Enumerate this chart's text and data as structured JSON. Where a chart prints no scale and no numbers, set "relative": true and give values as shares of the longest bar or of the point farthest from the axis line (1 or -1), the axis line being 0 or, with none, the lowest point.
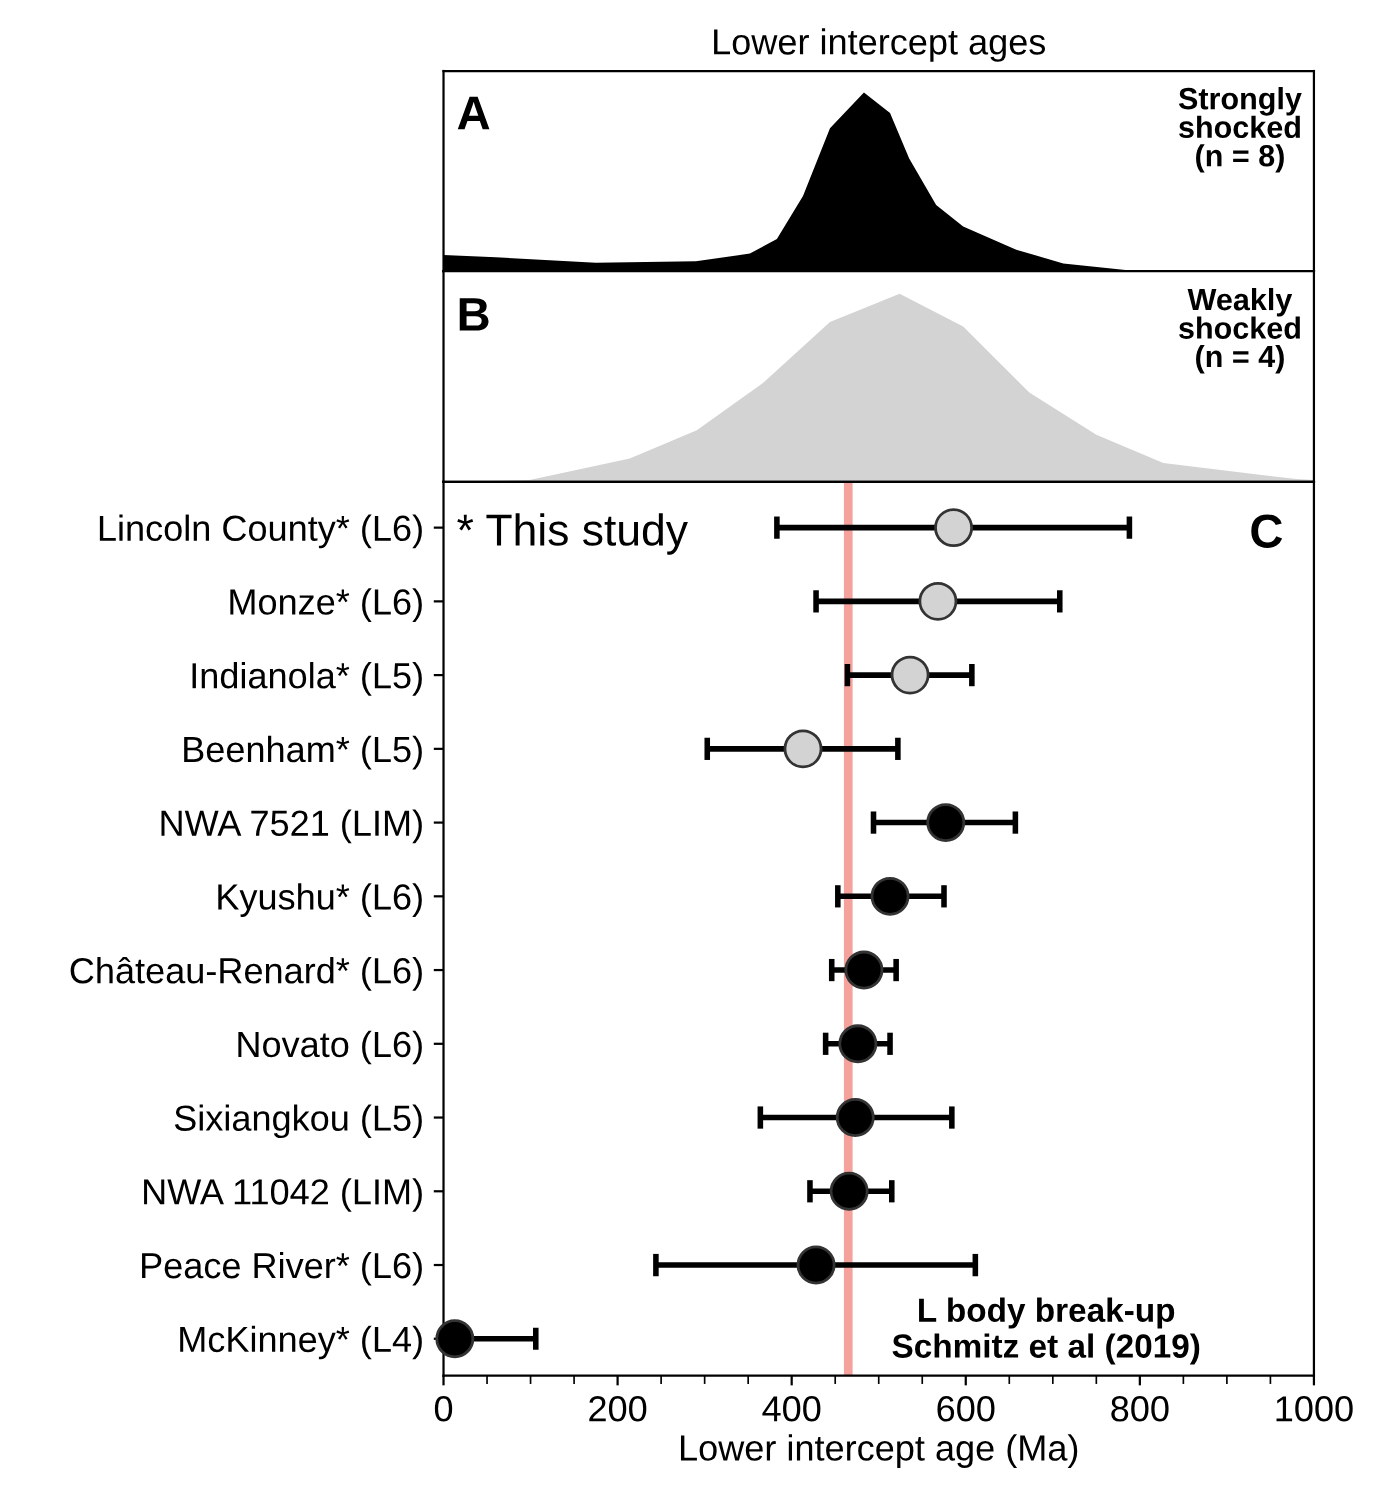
{
  "chart_data": [
    {
      "type": "area",
      "title": "Lower intercept ages",
      "relative": true,
      "xlim": [
        0,
        1000
      ],
      "tick_labels": false,
      "annotations": [
        "A",
        "Strongly\nshocked\n(n = 8)"
      ],
      "series": [
        {
          "color": "#000000",
          "x": [
            0,
            60,
            175,
            290,
            352,
            383,
            413,
            444,
            483,
            513,
            535,
            566,
            597,
            658,
            712,
            789,
            1000
          ],
          "values": [
            0.09,
            0.077,
            0.047,
            0.055,
            0.098,
            0.18,
            0.42,
            0.8,
            1.0,
            0.885,
            0.63,
            0.37,
            0.25,
            0.12,
            0.043,
            0.004,
            0
          ]
        }
      ]
    },
    {
      "type": "area",
      "relative": true,
      "xlim": [
        0,
        1000
      ],
      "tick_labels": false,
      "annotations": [
        "B",
        "Weakly\nshocked\n(n = 4)"
      ],
      "series": [
        {
          "color": "#d3d3d3",
          "x": [
            0,
            99,
            214,
            291,
            367,
            444,
            524,
            597,
            673,
            750,
            827,
            980,
            1000
          ],
          "values": [
            0,
            0.01,
            0.125,
            0.275,
            0.525,
            0.85,
            1.0,
            0.825,
            0.475,
            0.25,
            0.1,
            0.015,
            0.01
          ]
        }
      ]
    },
    {
      "type": "scatter",
      "orientation": "horizontal",
      "marker": "circle",
      "xlabel": "Lower intercept age (Ma)",
      "xlim": [
        0,
        1000
      ],
      "xticks": [
        0,
        200,
        400,
        600,
        800,
        1000
      ],
      "categories": [
        "Lincoln County* (L6)",
        "Monze* (L6)",
        "Indianola* (L5)",
        "Beenham* (L5)",
        "NWA 7521 (LIM)",
        "Kyushu* (L6)",
        "Château-Renard* (L6)",
        "Novato (L6)",
        "Sixiangkou (L5)",
        "NWA 11042 (LIM)",
        "Peace River* (L6)",
        "McKinney* (L4)"
      ],
      "values": [
        586,
        568,
        536,
        413,
        577,
        513,
        483,
        476,
        473,
        466,
        428,
        13
      ],
      "errors": [
        [
          383,
          788
        ],
        [
          428,
          708
        ],
        [
          464,
          607
        ],
        [
          303,
          522
        ],
        [
          494,
          657
        ],
        [
          453,
          575
        ],
        [
          446,
          520
        ],
        [
          439,
          513
        ],
        [
          364,
          584
        ],
        [
          421,
          515
        ],
        [
          244,
          611
        ],
        [
          0,
          106
        ]
      ],
      "colors": [
        "#d3d3d3",
        "#d3d3d3",
        "#d3d3d3",
        "#d3d3d3",
        "#000000",
        "#000000",
        "#000000",
        "#000000",
        "#000000",
        "#000000",
        "#000000",
        "#000000"
      ],
      "bands": [
        {
          "axis": "x",
          "from": 460,
          "to": 470,
          "label": "L body break-up\nSchmitz et al (2019)",
          "color": "#f6a29c"
        }
      ],
      "annotations": [
        "* This study",
        "C"
      ]
    }
  ]
}
